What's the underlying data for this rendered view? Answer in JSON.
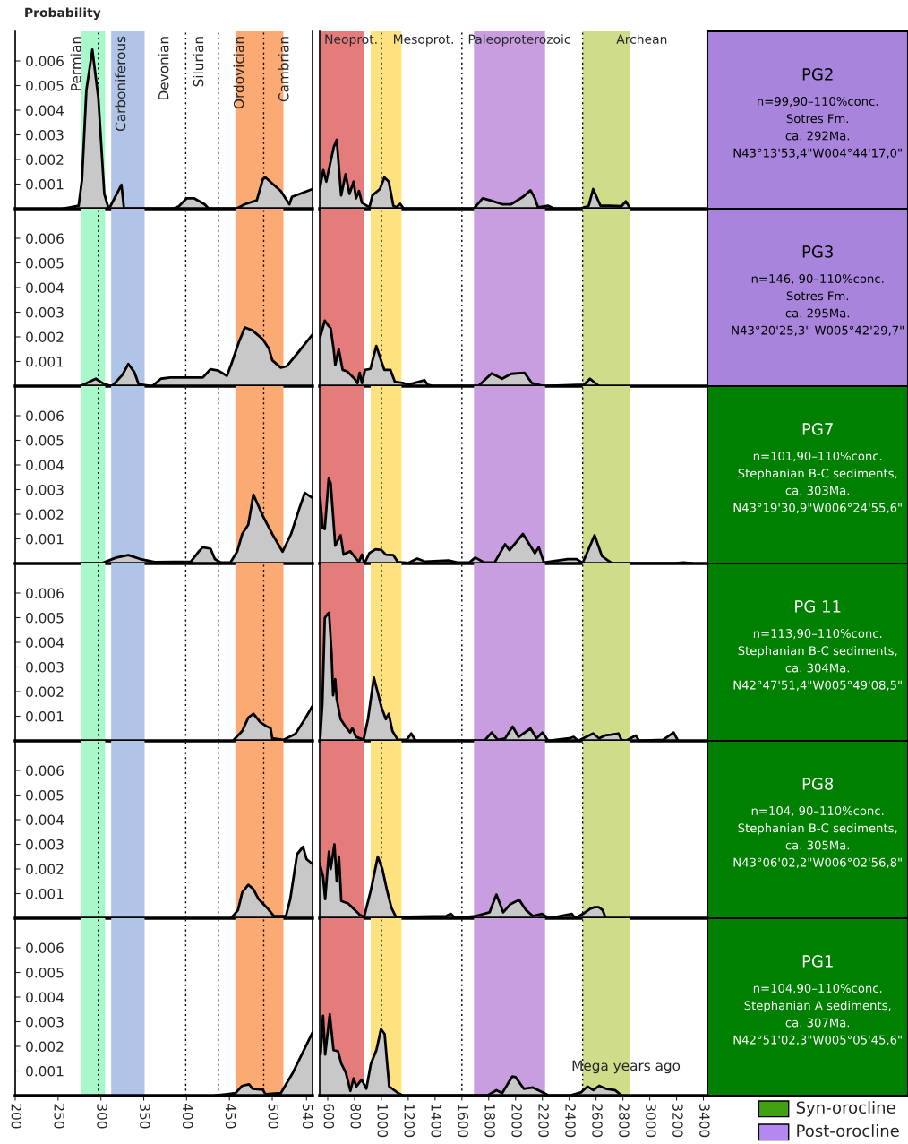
{
  "chart_data": [
    {
      "type": "area",
      "ylabel": "Probability",
      "xlim": [
        200,
        547
      ],
      "ylim": [
        0,
        0.0072
      ],
      "yticks": [
        0.001,
        0.002,
        0.003,
        0.004,
        0.005,
        0.006
      ],
      "tick_labels": "y",
      "bands": [
        {
          "axis": "x",
          "from": 277,
          "to": 305,
          "color": "#a8f8cc"
        },
        {
          "axis": "x",
          "from": 312,
          "to": 351,
          "color": "#b0c4e8"
        },
        {
          "axis": "x",
          "from": 457,
          "to": 513,
          "color": "#fcaa74"
        }
      ],
      "annotations": [
        "Permian",
        "Carboniferous",
        "Devonian",
        "Silurian",
        "Ordovician",
        "Cambrian"
      ],
      "ref_lines": [
        {
          "axis": "x",
          "value": 297,
          "line_style": "dotted"
        },
        {
          "axis": "x",
          "value": 399,
          "line_style": "dotted"
        },
        {
          "axis": "x",
          "value": 437,
          "line_style": "dotted"
        },
        {
          "axis": "x",
          "value": 490,
          "line_style": "dotted"
        }
      ],
      "series": [
        {
          "color": "#c8c8c8",
          "x": [
            255,
            274,
            278,
            283,
            290,
            297,
            304,
            309,
            311,
            324,
            327,
            384,
            391,
            400,
            409,
            421,
            426,
            458,
            468,
            482,
            489,
            492,
            510,
            520,
            523,
            547
          ],
          "values": [
            0,
            0.00012,
            0.0012,
            0.0048,
            0.00646,
            0.0045,
            0.0006,
            0,
            0.0001,
            0.00097,
            0,
            0,
            0.0001,
            0.00042,
            0.00042,
            0.00018,
            0,
            0,
            0.00018,
            0.00034,
            0.0012,
            0.00127,
            0.00072,
            0.00018,
            0.00048,
            0.0008
          ]
        }
      ]
    },
    {
      "type": "area",
      "xlim": [
        540,
        3430
      ],
      "ylim": [
        0,
        0.0072
      ],
      "tick_labels": false,
      "bands": [
        {
          "axis": "x",
          "from": 545,
          "to": 870,
          "color": "#e47c7c"
        },
        {
          "axis": "x",
          "from": 920,
          "to": 1150,
          "color": "#fee280"
        },
        {
          "axis": "x",
          "from": 1690,
          "to": 2220,
          "color": "#c89ee0"
        },
        {
          "axis": "x",
          "from": 2500,
          "to": 2850,
          "color": "#cfdd8a"
        }
      ],
      "annotations": [
        "Neoprot.",
        "Mesoprot.",
        "Paleoproterozoic",
        "Archean"
      ],
      "ref_lines": [
        {
          "axis": "x",
          "value": 1000,
          "line_style": "dotted"
        },
        {
          "axis": "x",
          "value": 1600,
          "line_style": "dotted"
        },
        {
          "axis": "x",
          "value": 2500,
          "line_style": "dotted"
        }
      ],
      "series": [
        {
          "color": "#c8c8c8",
          "x": [
            544,
            567,
            589,
            645,
            667,
            700,
            733,
            762,
            793,
            811,
            833,
            855,
            911,
            933,
            989,
            1022,
            1055,
            1089,
            1111,
            1140,
            1167,
            1689,
            1755,
            1811,
            1900,
            1967,
            2055,
            2111,
            2144,
            2167,
            2245,
            2289,
            2478,
            2545,
            2578,
            2633,
            2700,
            2789,
            2822,
            2855
          ],
          "values": [
            0.0009,
            0.00157,
            0.0011,
            0.0025,
            0.0028,
            0.00054,
            0.0014,
            0.0006,
            0.0011,
            0.00042,
            0.00072,
            0.00024,
            6e-05,
            0.00054,
            0.0008,
            0.00127,
            0.0011,
            0.00012,
            6e-05,
            0.0002,
            0,
            0,
            0.00042,
            0.00034,
            0.00018,
            0.00018,
            0.00048,
            0.00075,
            0.00042,
            6e-05,
            0.00012,
            0,
            0,
            0.00012,
            0.0008,
            0.00012,
            0.00012,
            0.0001,
            0.0003,
            0
          ]
        }
      ]
    },
    {
      "type": "other",
      "title": "PG2",
      "colors": [
        "#a884dc"
      ],
      "annotations": [
        "n=99,90–110%conc.",
        "Sotres Fm.",
        "ca. 292Ma.",
        "N43°13'53,4\"W004°44'17,0\""
      ]
    },
    {
      "type": "area",
      "xlim": [
        200,
        547
      ],
      "ylim": [
        0,
        0.0072
      ],
      "yticks": [
        0.001,
        0.002,
        0.003,
        0.004,
        0.005,
        0.006
      ],
      "tick_labels": "y",
      "bands": [
        {
          "axis": "x",
          "from": 277,
          "to": 305,
          "color": "#a8f8cc"
        },
        {
          "axis": "x",
          "from": 312,
          "to": 351,
          "color": "#b0c4e8"
        },
        {
          "axis": "x",
          "from": 457,
          "to": 513,
          "color": "#fcaa74"
        }
      ],
      "ref_lines": [
        {
          "axis": "x",
          "value": 297,
          "line_style": "dotted"
        },
        {
          "axis": "x",
          "value": 399,
          "line_style": "dotted"
        },
        {
          "axis": "x",
          "value": 437,
          "line_style": "dotted"
        },
        {
          "axis": "x",
          "value": 490,
          "line_style": "dotted"
        }
      ],
      "series": [
        {
          "color": "#c8c8c8",
          "x": [
            276,
            294,
            304,
            313,
            325,
            332,
            339,
            344,
            360,
            370,
            381,
            419,
            428,
            437,
            447,
            452,
            461,
            468,
            477,
            489,
            496,
            500,
            510,
            517,
            531,
            547
          ],
          "values": [
            0,
            0.0003,
            8e-05,
            0,
            0.00045,
            0.0009,
            0.00057,
            8e-05,
            0,
            0.0003,
            0.00035,
            0.00035,
            0.00069,
            0.00063,
            0.00042,
            0.00087,
            0.00178,
            0.00238,
            0.00226,
            0.0019,
            0.00153,
            0.00105,
            0.00075,
            0.00081,
            0.0014,
            0.0021
          ]
        }
      ]
    },
    {
      "type": "area",
      "xlim": [
        540,
        3430
      ],
      "ylim": [
        0,
        0.0072
      ],
      "tick_labels": false,
      "bands": [
        {
          "axis": "x",
          "from": 545,
          "to": 870,
          "color": "#e47c7c"
        },
        {
          "axis": "x",
          "from": 920,
          "to": 1150,
          "color": "#fee280"
        },
        {
          "axis": "x",
          "from": 1690,
          "to": 2220,
          "color": "#c89ee0"
        },
        {
          "axis": "x",
          "from": 2500,
          "to": 2850,
          "color": "#cfdd8a"
        }
      ],
      "ref_lines": [
        {
          "axis": "x",
          "value": 1000,
          "line_style": "dotted"
        },
        {
          "axis": "x",
          "value": 1600,
          "line_style": "dotted"
        },
        {
          "axis": "x",
          "value": 2500,
          "line_style": "dotted"
        }
      ],
      "series": [
        {
          "color": "#c8c8c8",
          "x": [
            544,
            578,
            600,
            622,
            645,
            656,
            682,
            711,
            744,
            800,
            822,
            838,
            855,
            878,
            918,
            962,
            1000,
            1022,
            1067,
            1100,
            1167,
            1200,
            1322,
            1344,
            1389,
            1722,
            1822,
            1900,
            1967,
            2067,
            2122,
            2211,
            2511,
            2555,
            2622
          ],
          "values": [
            0.002,
            0.00266,
            0.00248,
            0.00235,
            0.00145,
            0.00085,
            0.0015,
            0.00066,
            0.0006,
            0.0003,
            0.00012,
            0.00054,
            0.00012,
            0.00066,
            0.0007,
            0.00163,
            0.001,
            0.00066,
            0.00066,
            0.00018,
            0.00012,
            6e-05,
            0.00024,
            6e-05,
            0,
            0,
            0.00052,
            0.0003,
            0.0005,
            0.00054,
            0.00012,
            0,
            6e-05,
            0.0003,
            0
          ]
        }
      ]
    },
    {
      "type": "other",
      "title": "PG3",
      "colors": [
        "#a884dc"
      ],
      "annotations": [
        "n=146, 90–110%conc.",
        "Sotres Fm.",
        "ca. 295Ma.",
        "N43°20'25,3\" W005°42'29,7\""
      ]
    },
    {
      "type": "area",
      "xlim": [
        200,
        547
      ],
      "ylim": [
        0,
        0.0072
      ],
      "yticks": [
        0.001,
        0.002,
        0.003,
        0.004,
        0.005,
        0.006
      ],
      "tick_labels": "y",
      "bands": [
        {
          "axis": "x",
          "from": 277,
          "to": 305,
          "color": "#a8f8cc"
        },
        {
          "axis": "x",
          "from": 312,
          "to": 351,
          "color": "#b0c4e8"
        },
        {
          "axis": "x",
          "from": 457,
          "to": 513,
          "color": "#fcaa74"
        }
      ],
      "ref_lines": [
        {
          "axis": "x",
          "value": 297,
          "line_style": "dotted"
        },
        {
          "axis": "x",
          "value": 399,
          "line_style": "dotted"
        },
        {
          "axis": "x",
          "value": 437,
          "line_style": "dotted"
        },
        {
          "axis": "x",
          "value": 490,
          "line_style": "dotted"
        }
      ],
      "series": [
        {
          "color": "#c8c8c8",
          "x": [
            280,
            300,
            318,
            332,
            346,
            363,
            405,
            414,
            419,
            428,
            433,
            440,
            451,
            459,
            465,
            472,
            478,
            489,
            500,
            512,
            522,
            531,
            538,
            547
          ],
          "values": [
            0,
            0,
            0.00024,
            0.00034,
            0.00018,
            6e-05,
            8e-05,
            0.00048,
            0.00066,
            0.0006,
            0.00018,
            4e-05,
            4e-05,
            0.00048,
            0.0012,
            0.00157,
            0.0028,
            0.00193,
            0.0012,
            0.00048,
            0.0012,
            0.00217,
            0.00287,
            0.00266
          ]
        }
      ]
    },
    {
      "type": "area",
      "xlim": [
        540,
        3430
      ],
      "ylim": [
        0,
        0.0072
      ],
      "tick_labels": false,
      "bands": [
        {
          "axis": "x",
          "from": 545,
          "to": 870,
          "color": "#e47c7c"
        },
        {
          "axis": "x",
          "from": 920,
          "to": 1150,
          "color": "#fee280"
        },
        {
          "axis": "x",
          "from": 1690,
          "to": 2220,
          "color": "#c89ee0"
        },
        {
          "axis": "x",
          "from": 2500,
          "to": 2850,
          "color": "#cfdd8a"
        }
      ],
      "ref_lines": [
        {
          "axis": "x",
          "value": 1000,
          "line_style": "dotted"
        },
        {
          "axis": "x",
          "value": 1600,
          "line_style": "dotted"
        },
        {
          "axis": "x",
          "value": 2500,
          "line_style": "dotted"
        }
      ],
      "series": [
        {
          "color": "#c8c8c8",
          "x": [
            544,
            562,
            578,
            607,
            622,
            656,
            696,
            718,
            767,
            833,
            855,
            873,
            911,
            956,
            1000,
            1033,
            1089,
            1122,
            1200,
            1267,
            1322,
            1500,
            1567,
            1656,
            1700,
            1767,
            1844,
            1922,
            1955,
            2055,
            2144,
            2173,
            2211,
            2389,
            2455,
            2500,
            2589,
            2644,
            2689,
            2722,
            3180,
            3250,
            3320
          ],
          "values": [
            0.00266,
            0.00145,
            0.0014,
            0.00344,
            0.00326,
            0.00072,
            0.00115,
            0.00036,
            0.0005,
            6e-05,
            0.00036,
            0,
            0.00042,
            0.00058,
            0.00055,
            0.00036,
            0.00034,
            6e-05,
            2e-05,
            0.0002,
            8e-05,
            0.00012,
            4e-05,
            4e-05,
            0.00024,
            4e-05,
            4e-05,
            0.00078,
            0.00054,
            0.0012,
            0.00042,
            0.00066,
            4e-05,
            0.00018,
            0.00018,
            2e-05,
            0.00115,
            0.0003,
            0.00012,
            0,
            0,
            4e-05,
            0
          ]
        }
      ]
    },
    {
      "type": "other",
      "title": "PG7",
      "colors": [
        "#008000"
      ],
      "annotations": [
        "n=101,90–110%conc.",
        "Stephanian B-C sediments,",
        "ca. 303Ma.",
        "N43°19'30,9\"W006°24'55,6\""
      ]
    },
    {
      "type": "area",
      "xlim": [
        200,
        547
      ],
      "ylim": [
        0,
        0.0072
      ],
      "yticks": [
        0.001,
        0.002,
        0.003,
        0.004,
        0.005,
        0.006
      ],
      "tick_labels": "y",
      "bands": [
        {
          "axis": "x",
          "from": 277,
          "to": 305,
          "color": "#a8f8cc"
        },
        {
          "axis": "x",
          "from": 312,
          "to": 351,
          "color": "#b0c4e8"
        },
        {
          "axis": "x",
          "from": 457,
          "to": 513,
          "color": "#fcaa74"
        }
      ],
      "ref_lines": [
        {
          "axis": "x",
          "value": 297,
          "line_style": "dotted"
        },
        {
          "axis": "x",
          "value": 399,
          "line_style": "dotted"
        },
        {
          "axis": "x",
          "value": 437,
          "line_style": "dotted"
        },
        {
          "axis": "x",
          "value": 490,
          "line_style": "dotted"
        }
      ],
      "series": [
        {
          "color": "#c8c8c8",
          "x": [
            454,
            465,
            472,
            478,
            486,
            494,
            498,
            500,
            513,
            527,
            538,
            547
          ],
          "values": [
            0,
            0.0004,
            0.00094,
            0.0011,
            0.00076,
            0.00058,
            0.00052,
            0.0001,
            4e-05,
            0.00028,
            0.00088,
            0.00142
          ]
        }
      ]
    },
    {
      "type": "area",
      "xlim": [
        540,
        3430
      ],
      "ylim": [
        0,
        0.0072
      ],
      "tick_labels": false,
      "bands": [
        {
          "axis": "x",
          "from": 545,
          "to": 870,
          "color": "#e47c7c"
        },
        {
          "axis": "x",
          "from": 920,
          "to": 1150,
          "color": "#fee280"
        },
        {
          "axis": "x",
          "from": 1690,
          "to": 2220,
          "color": "#c89ee0"
        },
        {
          "axis": "x",
          "from": 2500,
          "to": 2850,
          "color": "#cfdd8a"
        }
      ],
      "ref_lines": [
        {
          "axis": "x",
          "value": 1000,
          "line_style": "dotted"
        },
        {
          "axis": "x",
          "value": 1600,
          "line_style": "dotted"
        },
        {
          "axis": "x",
          "value": 2500,
          "line_style": "dotted"
        }
      ],
      "series": [
        {
          "color": "#c8c8c8",
          "x": [
            544,
            560,
            578,
            600,
            610,
            629,
            640,
            656,
            667,
            696,
            733,
            767,
            784,
            811,
            867,
            900,
            944,
            978,
            1000,
            1033,
            1055,
            1082,
            1122,
            1189,
            1222,
            1256,
            1767,
            1822,
            1867,
            1922,
            1978,
            2022,
            2111,
            2156,
            2200,
            2244,
            2400,
            2433,
            2467,
            2578,
            2622,
            2667,
            2711,
            2767,
            2789,
            2822,
            2895,
            2922,
            3100,
            3178,
            3211
          ],
          "values": [
            0.0001,
            0.0015,
            0.00498,
            0.00516,
            0.0052,
            0.0035,
            0.00185,
            0.0025,
            0.0017,
            0.00088,
            0.00058,
            0.00034,
            0.00052,
            0.00016,
            4e-05,
            0.00088,
            0.00257,
            0.00185,
            0.00137,
            0.00088,
            0.0011,
            0.0004,
            4e-05,
            4e-05,
            0.0003,
            0,
            0,
            0.00034,
            4e-05,
            0.0001,
            0.00058,
            0.00016,
            0.0005,
            0.0001,
            0.00034,
            0,
            0.0001,
            0.00016,
            0,
            0.0003,
            0.0001,
            0.00022,
            0.00025,
            0.0003,
            4e-05,
            0,
            0.00022,
            0,
            4e-05,
            0.00034,
            0
          ]
        }
      ]
    },
    {
      "type": "other",
      "title": "PG 11",
      "colors": [
        "#008000"
      ],
      "annotations": [
        "n=113,90–110%conc.",
        "Stephanian B-C sediments,",
        "ca. 304Ma.",
        "N42°47'51,4\"W005°49'08,5\""
      ]
    },
    {
      "type": "area",
      "xlim": [
        200,
        547
      ],
      "ylim": [
        0,
        0.0072
      ],
      "yticks": [
        0.001,
        0.002,
        0.003,
        0.004,
        0.005,
        0.006
      ],
      "tick_labels": "y",
      "bands": [
        {
          "axis": "x",
          "from": 277,
          "to": 305,
          "color": "#a8f8cc"
        },
        {
          "axis": "x",
          "from": 312,
          "to": 351,
          "color": "#b0c4e8"
        },
        {
          "axis": "x",
          "from": 457,
          "to": 513,
          "color": "#fcaa74"
        }
      ],
      "ref_lines": [
        {
          "axis": "x",
          "value": 297,
          "line_style": "dotted"
        },
        {
          "axis": "x",
          "value": 399,
          "line_style": "dotted"
        },
        {
          "axis": "x",
          "value": 437,
          "line_style": "dotted"
        },
        {
          "axis": "x",
          "value": 490,
          "line_style": "dotted"
        }
      ],
      "series": [
        {
          "color": "#c8c8c8",
          "x": [
            452,
            460,
            465,
            472,
            478,
            484,
            494,
            502,
            516,
            521,
            529,
            536,
            540,
            547
          ],
          "values": [
            0,
            0.00033,
            0.00105,
            0.00136,
            0.00118,
            0.00078,
            0.00042,
            9e-05,
            9e-05,
            0.00078,
            0.0026,
            0.0029,
            0.0024,
            0.0022
          ]
        }
      ]
    },
    {
      "type": "area",
      "xlim": [
        540,
        3430
      ],
      "ylim": [
        0,
        0.0072
      ],
      "tick_labels": false,
      "bands": [
        {
          "axis": "x",
          "from": 545,
          "to": 870,
          "color": "#e47c7c"
        },
        {
          "axis": "x",
          "from": 920,
          "to": 1150,
          "color": "#fee280"
        },
        {
          "axis": "x",
          "from": 1690,
          "to": 2220,
          "color": "#c89ee0"
        },
        {
          "axis": "x",
          "from": 2500,
          "to": 2850,
          "color": "#cfdd8a"
        }
      ],
      "ref_lines": [
        {
          "axis": "x",
          "value": 1000,
          "line_style": "dotted"
        },
        {
          "axis": "x",
          "value": 1600,
          "line_style": "dotted"
        },
        {
          "axis": "x",
          "value": 2500,
          "line_style": "dotted"
        }
      ],
      "series": [
        {
          "color": "#c8c8c8",
          "x": [
            541,
            565,
            581,
            609,
            622,
            650,
            667,
            684,
            701,
            752,
            786,
            837,
            871,
            922,
            973,
            1007,
            1041,
            1075,
            1109,
            1483,
            1517,
            1551,
            1704,
            1806,
            1857,
            1908,
            1959,
            2027,
            2078,
            2129,
            2197,
            2248,
            2419,
            2445,
            2503,
            2555,
            2589,
            2620,
            2649,
            2673
          ],
          "values": [
            0.0022,
            0.0017,
            0.00078,
            0.0027,
            0.002,
            0.003,
            0.0015,
            0.0025,
            0.0007,
            0.0006,
            0.00042,
            0.00015,
            5e-05,
            0.00115,
            0.0025,
            0.002,
            0.00115,
            0.00042,
            5e-05,
            9e-05,
            0.00018,
            0,
            9e-05,
            0.00024,
            0.00096,
            0.00024,
            0.00056,
            0.00075,
            0.00033,
            9e-05,
            0.00018,
            0,
            0.00018,
            0,
            0.00018,
            0.00038,
            0.00045,
            0.00045,
            0.00033,
            0
          ]
        }
      ]
    },
    {
      "type": "other",
      "title": "PG8",
      "colors": [
        "#008000"
      ],
      "annotations": [
        "n=104, 90–110%conc.",
        "Stephanian B-C sediments,",
        "ca. 305Ma.",
        "N43°06'02,2\"W006°02'56,8\""
      ]
    },
    {
      "type": "area",
      "xlim": [
        200,
        547
      ],
      "ylim": [
        0,
        0.0072
      ],
      "yticks": [
        0.001,
        0.002,
        0.003,
        0.004,
        0.005,
        0.006
      ],
      "xticks": [
        200,
        250,
        300,
        350,
        400,
        450,
        500,
        540
      ],
      "bands": [
        {
          "axis": "x",
          "from": 277,
          "to": 305,
          "color": "#a8f8cc"
        },
        {
          "axis": "x",
          "from": 312,
          "to": 351,
          "color": "#b0c4e8"
        },
        {
          "axis": "x",
          "from": 457,
          "to": 513,
          "color": "#fcaa74"
        }
      ],
      "ref_lines": [
        {
          "axis": "x",
          "value": 297,
          "line_style": "dotted"
        },
        {
          "axis": "x",
          "value": 399,
          "line_style": "dotted"
        },
        {
          "axis": "x",
          "value": 437,
          "line_style": "dotted"
        },
        {
          "axis": "x",
          "value": 490,
          "line_style": "dotted"
        }
      ],
      "series": [
        {
          "color": "#c8c8c8",
          "x": [
            433,
            457,
            465,
            473,
            477,
            489,
            492,
            510,
            524,
            537,
            547
          ],
          "values": [
            0,
            0.0001,
            0.0004,
            0.00046,
            0.00028,
            0.00024,
            6e-05,
            0.0001,
            0.00093,
            0.00185,
            0.00256
          ]
        }
      ]
    },
    {
      "type": "area",
      "xlabel": "Mega years ago",
      "xlim": [
        540,
        3430
      ],
      "ylim": [
        0,
        0.0072
      ],
      "xticks": [
        600,
        800,
        1000,
        1200,
        1400,
        1600,
        1800,
        2000,
        2200,
        2400,
        2600,
        2800,
        3000,
        3200,
        3400
      ],
      "tick_labels": "x",
      "bands": [
        {
          "axis": "x",
          "from": 545,
          "to": 870,
          "color": "#e47c7c"
        },
        {
          "axis": "x",
          "from": 920,
          "to": 1150,
          "color": "#fee280"
        },
        {
          "axis": "x",
          "from": 1690,
          "to": 2220,
          "color": "#c89ee0"
        },
        {
          "axis": "x",
          "from": 2500,
          "to": 2850,
          "color": "#cfdd8a"
        }
      ],
      "ref_lines": [
        {
          "axis": "x",
          "value": 1000,
          "line_style": "dotted"
        },
        {
          "axis": "x",
          "value": 1600,
          "line_style": "dotted"
        },
        {
          "axis": "x",
          "value": 2500,
          "line_style": "dotted"
        }
      ],
      "series": [
        {
          "color": "#c8c8c8",
          "x": [
            547,
            565,
            581,
            615,
            643,
            677,
            701,
            735,
            769,
            793,
            813,
            853,
            888,
            922,
            963,
            997,
            1024,
            1058,
            1126,
            1160,
            1789,
            1857,
            1900,
            1976,
            2000,
            2061,
            2129,
            2214,
            2247,
            2401,
            2487,
            2537,
            2580,
            2623,
            2673,
            2741,
            2793
          ],
          "values": [
            0.00167,
            0.00324,
            0.00167,
            0.0033,
            0.00185,
            0.0018,
            0.0013,
            0.00093,
            0.00019,
            0.0007,
            0.00037,
            0.00065,
            0.00028,
            0.0013,
            0.00185,
            0.0027,
            0.0025,
            0.00037,
            0.0001,
            0,
            0,
            0.00022,
            0.0001,
            0.00078,
            0.00075,
            0.00028,
            0.00033,
            0.0001,
            0,
            0,
            0.00013,
            0.00037,
            0.00022,
            0.0004,
            0.00028,
            0.00022,
            0
          ]
        }
      ]
    },
    {
      "type": "other",
      "title": "PG1",
      "colors": [
        "#008000"
      ],
      "annotations": [
        "n=104,90–110%conc.",
        "Stephanian A sediments,",
        "ca. 307Ma.",
        "N42°51'02,3\"W005°05'45,6\""
      ]
    },
    {
      "type": "other",
      "categories": [
        "Syn-orocline",
        "Post-orocline"
      ],
      "colors": [
        "#3fa010",
        "#b488f0"
      ]
    }
  ]
}
